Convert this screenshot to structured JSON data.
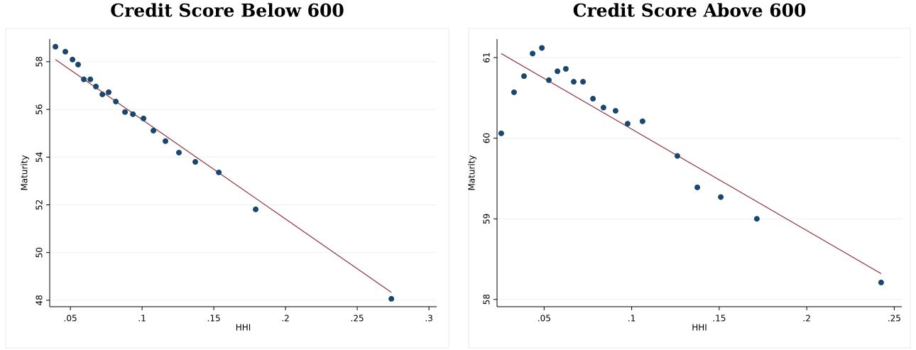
{
  "chart_data": [
    {
      "type": "scatter",
      "title": "Credit Score Below 600",
      "x_label": "HHI",
      "y_label": "Maturity",
      "xlim": [
        0.0356,
        0.3054
      ],
      "ylim": [
        47.73,
        58.95
      ],
      "xticks": [
        {
          "value": 0.05,
          "label": ".05"
        },
        {
          "value": 0.1,
          "label": ".1"
        },
        {
          "value": 0.15,
          "label": ".15"
        },
        {
          "value": 0.2,
          "label": ".2"
        },
        {
          "value": 0.25,
          "label": ".25"
        },
        {
          "value": 0.3,
          "label": ".3"
        }
      ],
      "yticks": [
        48,
        50,
        52,
        54,
        56,
        58
      ],
      "grid": true,
      "points": {
        "color": "#1a476f",
        "x": [
          0.0396,
          0.0465,
          0.0515,
          0.0554,
          0.0594,
          0.0639,
          0.0678,
          0.0723,
          0.0767,
          0.0817,
          0.0881,
          0.0936,
          0.101,
          0.1079,
          0.1163,
          0.1257,
          0.1371,
          0.1535,
          0.1792,
          0.2738
        ],
        "values": [
          58.63,
          58.42,
          58.09,
          57.88,
          57.26,
          57.26,
          56.96,
          56.63,
          56.72,
          56.33,
          55.89,
          55.8,
          55.62,
          55.11,
          54.67,
          54.19,
          53.8,
          53.36,
          51.81,
          48.06
        ]
      },
      "fit_line": {
        "color": "#90353b",
        "x": [
          0.0396,
          0.2738
        ],
        "values": [
          58.09,
          48.33
        ]
      }
    },
    {
      "type": "scatter",
      "title": "Credit Score Above 600",
      "x_label": "HHI",
      "y_label": "Maturity",
      "xlim": [
        0.0231,
        0.2543
      ],
      "ylim": [
        57.91,
        61.23
      ],
      "xticks": [
        {
          "value": 0.05,
          "label": ".05"
        },
        {
          "value": 0.1,
          "label": ".1"
        },
        {
          "value": 0.15,
          "label": ".15"
        },
        {
          "value": 0.2,
          "label": ".2"
        },
        {
          "value": 0.25,
          "label": ".25"
        }
      ],
      "yticks": [
        58,
        59,
        60,
        61
      ],
      "grid": true,
      "points": {
        "color": "#1a476f",
        "x": [
          0.0255,
          0.0328,
          0.0385,
          0.0434,
          0.0487,
          0.0527,
          0.0576,
          0.0624,
          0.0669,
          0.0722,
          0.0779,
          0.0839,
          0.0908,
          0.0977,
          0.1062,
          0.1261,
          0.1375,
          0.1509,
          0.1715,
          0.2425
        ],
        "values": [
          60.06,
          60.57,
          60.77,
          61.05,
          61.12,
          60.72,
          60.83,
          60.86,
          60.7,
          60.7,
          60.49,
          60.38,
          60.34,
          60.18,
          60.21,
          59.78,
          59.39,
          59.27,
          59.0,
          58.21
        ]
      },
      "fit_line": {
        "color": "#90353b",
        "x": [
          0.0255,
          0.2425
        ],
        "values": [
          61.05,
          58.32
        ]
      }
    }
  ]
}
